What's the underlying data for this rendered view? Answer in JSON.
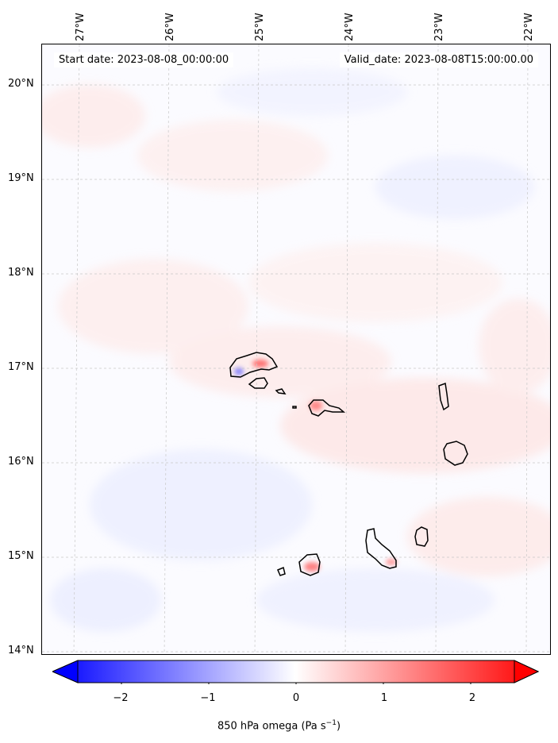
{
  "map": {
    "start_date": "Start date: 2023-08-08_00:00:00",
    "valid_date": "Valid_date: 2023-08-08T15:00:00.00",
    "lon_labels": [
      "27°W",
      "26°W",
      "25°W",
      "24°W",
      "23°W",
      "22°W"
    ],
    "lat_labels": [
      "20°N",
      "19°N",
      "18°N",
      "17°N",
      "16°N",
      "15°N",
      "14°N"
    ],
    "field_colors": {
      "low": "#0000ff",
      "mid": "#ffffff",
      "high": "#ff0000"
    }
  },
  "colorbar": {
    "ticks": [
      "−2",
      "−1",
      "0",
      "1",
      "2"
    ],
    "tick_values": [
      -2,
      -1,
      0,
      1,
      2
    ],
    "range": [
      -2.5,
      2.5
    ],
    "label_main": "850 hPa omega (Pa s",
    "label_sup": "−1",
    "label_end": ")"
  }
}
